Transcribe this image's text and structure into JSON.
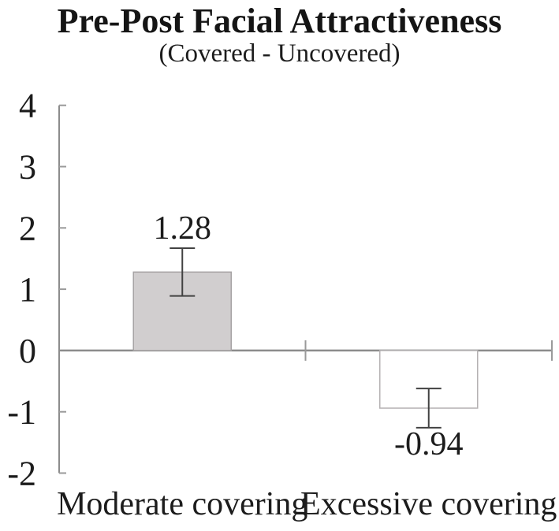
{
  "header": {
    "title": "Pre-Post Facial Attractiveness",
    "subtitle": "(Covered - Uncovered)"
  },
  "chart_data": {
    "type": "bar",
    "title": "Pre-Post Facial Attractiveness",
    "subtitle": "(Covered - Uncovered)",
    "categories": [
      "Moderate covering",
      "Excessive covering"
    ],
    "values": [
      1.28,
      -0.94
    ],
    "error_bars": [
      0.39,
      0.32
    ],
    "data_labels": [
      "1.28",
      "-0.94"
    ],
    "xlabel": "",
    "ylabel": "",
    "y_ticks": [
      4,
      3,
      2,
      1,
      0,
      -1,
      -2
    ],
    "ylim": [
      -2,
      4
    ],
    "grid": false,
    "legend": false,
    "bar_styles": [
      {
        "fill": "#d1cecf",
        "border": "#a6a3a4"
      },
      {
        "fill": "#ffffff",
        "border": "#b5b2b3"
      }
    ],
    "colors": {
      "axis": "#8c8c8c",
      "tick": "#9a9a9a",
      "error_bar": "#424242",
      "text": "#1c1c1c"
    }
  }
}
